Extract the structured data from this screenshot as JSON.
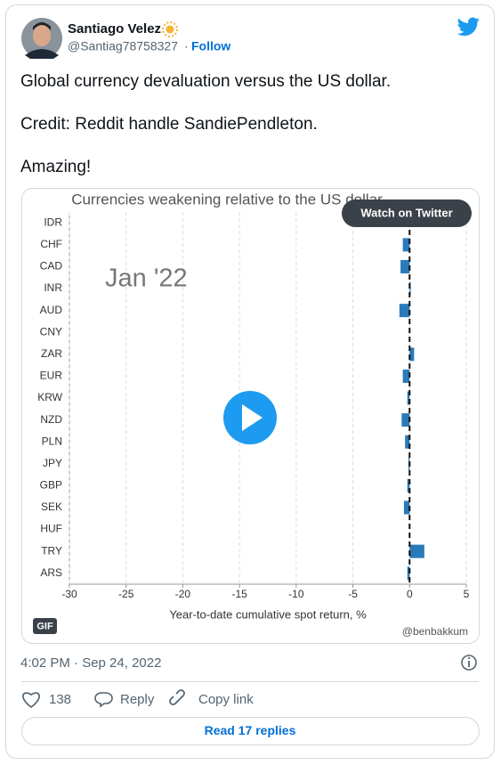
{
  "tweet": {
    "author_name": "Santiago Velez",
    "handle": "@Santiag78758327",
    "separator": "·",
    "follow": "Follow",
    "text": [
      "Global currency devaluation versus the US dollar.",
      "Credit: Reddit handle SandiePendleton.",
      "Amazing!"
    ],
    "watch": "Watch on Twitter",
    "gif": "GIF",
    "timestamp": "4:02 PM · Sep 24, 2022",
    "likes": 138,
    "reply": "Reply",
    "copy_link": "Copy link",
    "read_replies": "Read 17 replies"
  },
  "chart_data": {
    "type": "bar",
    "orientation": "horizontal",
    "title": "Currencies weakening relative to the US dollar",
    "annotation": "Jan '22",
    "credit": "@benbakkum",
    "x_label": "Year-to-date cumulative spot return, %",
    "categories": [
      "IDR",
      "CHF",
      "CAD",
      "INR",
      "AUD",
      "CNY",
      "ZAR",
      "EUR",
      "KRW",
      "NZD",
      "PLN",
      "JPY",
      "GBP",
      "SEK",
      "HUF",
      "TRY",
      "ARS"
    ],
    "values": [
      0,
      -0.6,
      -0.8,
      0.1,
      -0.9,
      0,
      0.4,
      -0.6,
      -0.2,
      -0.7,
      -0.4,
      -0.1,
      -0.2,
      -0.5,
      0,
      1.3,
      -0.2
    ],
    "color": "#2a7ab9",
    "xlim": [
      -30,
      5
    ],
    "xticks": [
      -30,
      -25,
      -20,
      -15,
      -10,
      -5,
      0,
      5
    ],
    "grid": true
  }
}
